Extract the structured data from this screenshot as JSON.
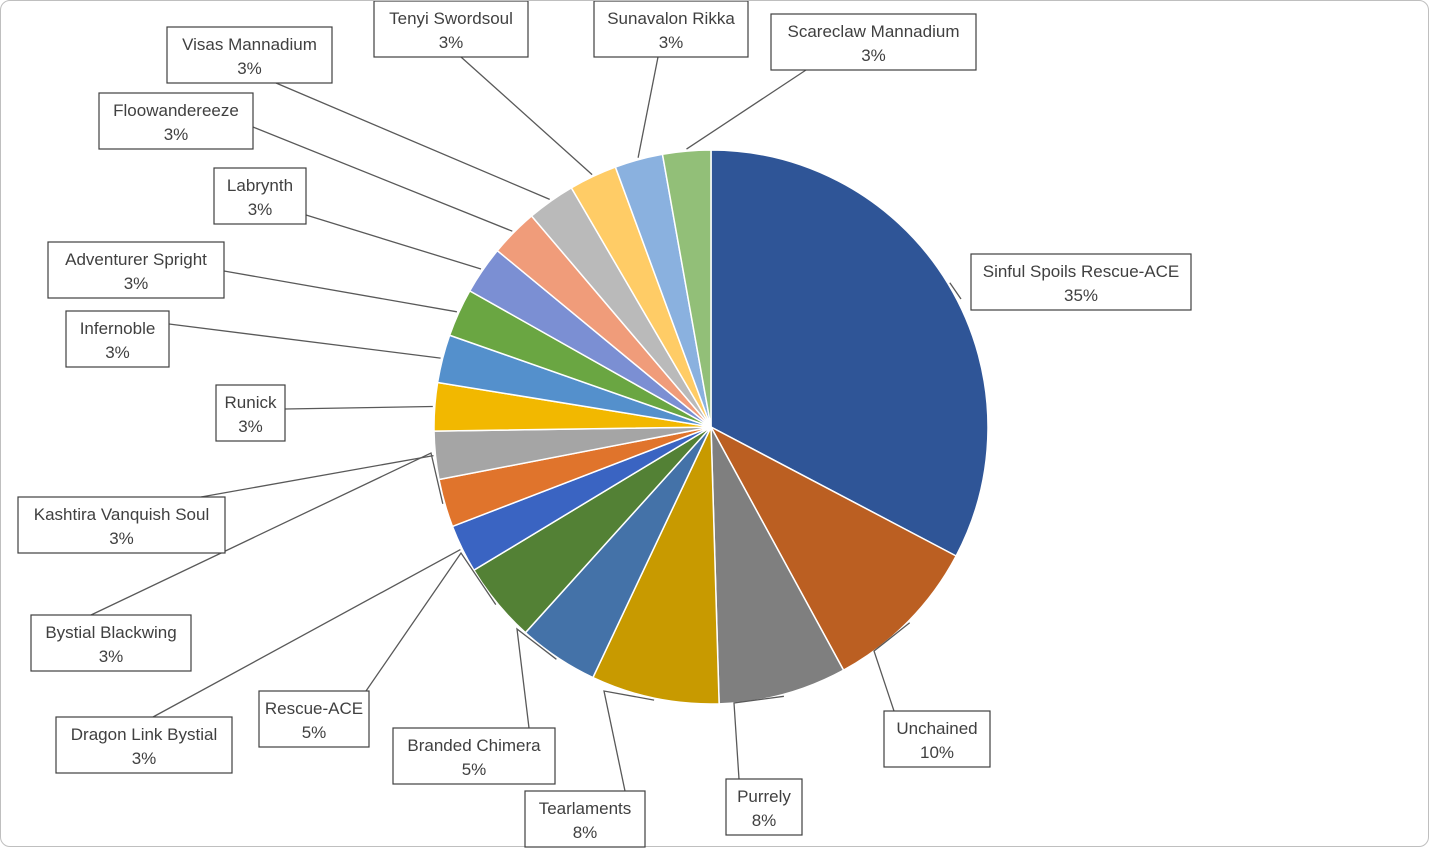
{
  "chart_data": {
    "type": "pie",
    "title": "",
    "legend": "none",
    "data_labels": "category name and percentage in callout boxes",
    "slices": [
      {
        "name": "Sinful Spoils Rescue-ACE",
        "value": 35,
        "label": "35%",
        "color": "#2f5597"
      },
      {
        "name": "Unchained",
        "value": 10,
        "label": "10%",
        "color": "#bb5f22"
      },
      {
        "name": "Purrely",
        "value": 8,
        "label": "8%",
        "color": "#7f7f7f"
      },
      {
        "name": "Tearlaments",
        "value": 8,
        "label": "8%",
        "color": "#c89a00"
      },
      {
        "name": "Branded Chimera",
        "value": 5,
        "label": "5%",
        "color": "#4472a8"
      },
      {
        "name": "Rescue-ACE",
        "value": 5,
        "label": "5%",
        "color": "#538135"
      },
      {
        "name": "Dragon Link Bystial",
        "value": 3,
        "label": "3%",
        "color": "#3a64c2"
      },
      {
        "name": "Bystial Blackwing",
        "value": 3,
        "label": "3%",
        "color": "#e0742c"
      },
      {
        "name": "Kashtira Vanquish Soul",
        "value": 3,
        "label": "3%",
        "color": "#a5a5a5"
      },
      {
        "name": "Runick",
        "value": 3,
        "label": "3%",
        "color": "#f2b800"
      },
      {
        "name": "Infernoble",
        "value": 3,
        "label": "3%",
        "color": "#5490cc"
      },
      {
        "name": "Adventurer Spright",
        "value": 3,
        "label": "3%",
        "color": "#6aa642"
      },
      {
        "name": "Labrynth",
        "value": 3,
        "label": "3%",
        "color": "#7b8fd3"
      },
      {
        "name": "Floowandereeze",
        "value": 3,
        "label": "3%",
        "color": "#f09c7a"
      },
      {
        "name": "Visas Mannadium",
        "value": 3,
        "label": "3%",
        "color": "#bababa"
      },
      {
        "name": "Tenyi Swordsoul",
        "value": 3,
        "label": "3%",
        "color": "#ffcc66"
      },
      {
        "name": "Sunavalon Rikka",
        "value": 3,
        "label": "3%",
        "color": "#8ab1df"
      },
      {
        "name": "Scareclaw Mannadium",
        "value": 3,
        "label": "3%",
        "color": "#92bf78"
      }
    ]
  }
}
